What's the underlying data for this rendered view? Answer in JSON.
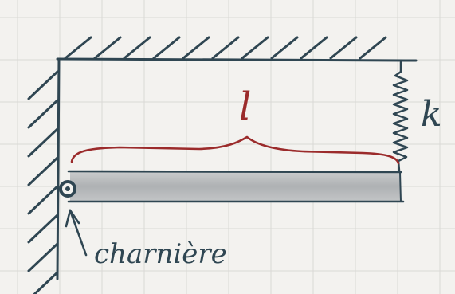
{
  "labels": {
    "length": "l",
    "stiffness": "k",
    "hinge": "charnière"
  },
  "colors": {
    "ink": "#2f4652",
    "accent": "#9b2b2b",
    "grid": "#d9d9d6",
    "paper": "#f3f2ef"
  }
}
